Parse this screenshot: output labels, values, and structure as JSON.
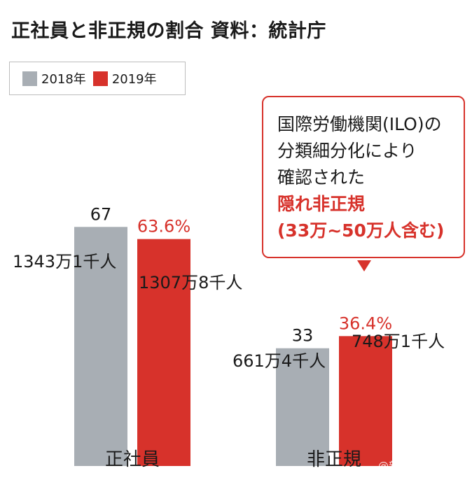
{
  "title": "正社員と非正規の割合 資料：統計庁",
  "source": "資料：統計庁",
  "legend": [
    {
      "label": "2018年",
      "color": "#a8aeb4"
    },
    {
      "label": "2019年",
      "color": "#d7322b"
    }
  ],
  "callout": {
    "lines": [
      "国際労働機関(ILO)の",
      "分類細分化により",
      "確認された"
    ],
    "highlight_lines": [
      "隠れ非正規",
      "(33万~50万人含む)"
    ]
  },
  "colors": {
    "gray": "#a8aeb4",
    "red": "#d7322b"
  },
  "chart_data": {
    "type": "bar",
    "categories": [
      "正社員",
      "非正規"
    ],
    "series": [
      {
        "name": "2018年",
        "values": [
          67,
          33
        ],
        "value_labels": [
          "67",
          "33"
        ],
        "count_labels": [
          "1343万1千人",
          "661万4千人"
        ]
      },
      {
        "name": "2019年",
        "values": [
          63.6,
          36.4
        ],
        "value_labels": [
          "63.6%",
          "36.4%"
        ],
        "count_labels": [
          "1307万8千人",
          "748万1千人"
        ]
      }
    ],
    "ylim": [
      0,
      100
    ],
    "grid": false,
    "legend_position": "top-left"
  },
  "watermark": "@新闻社区 @大眼联盟"
}
